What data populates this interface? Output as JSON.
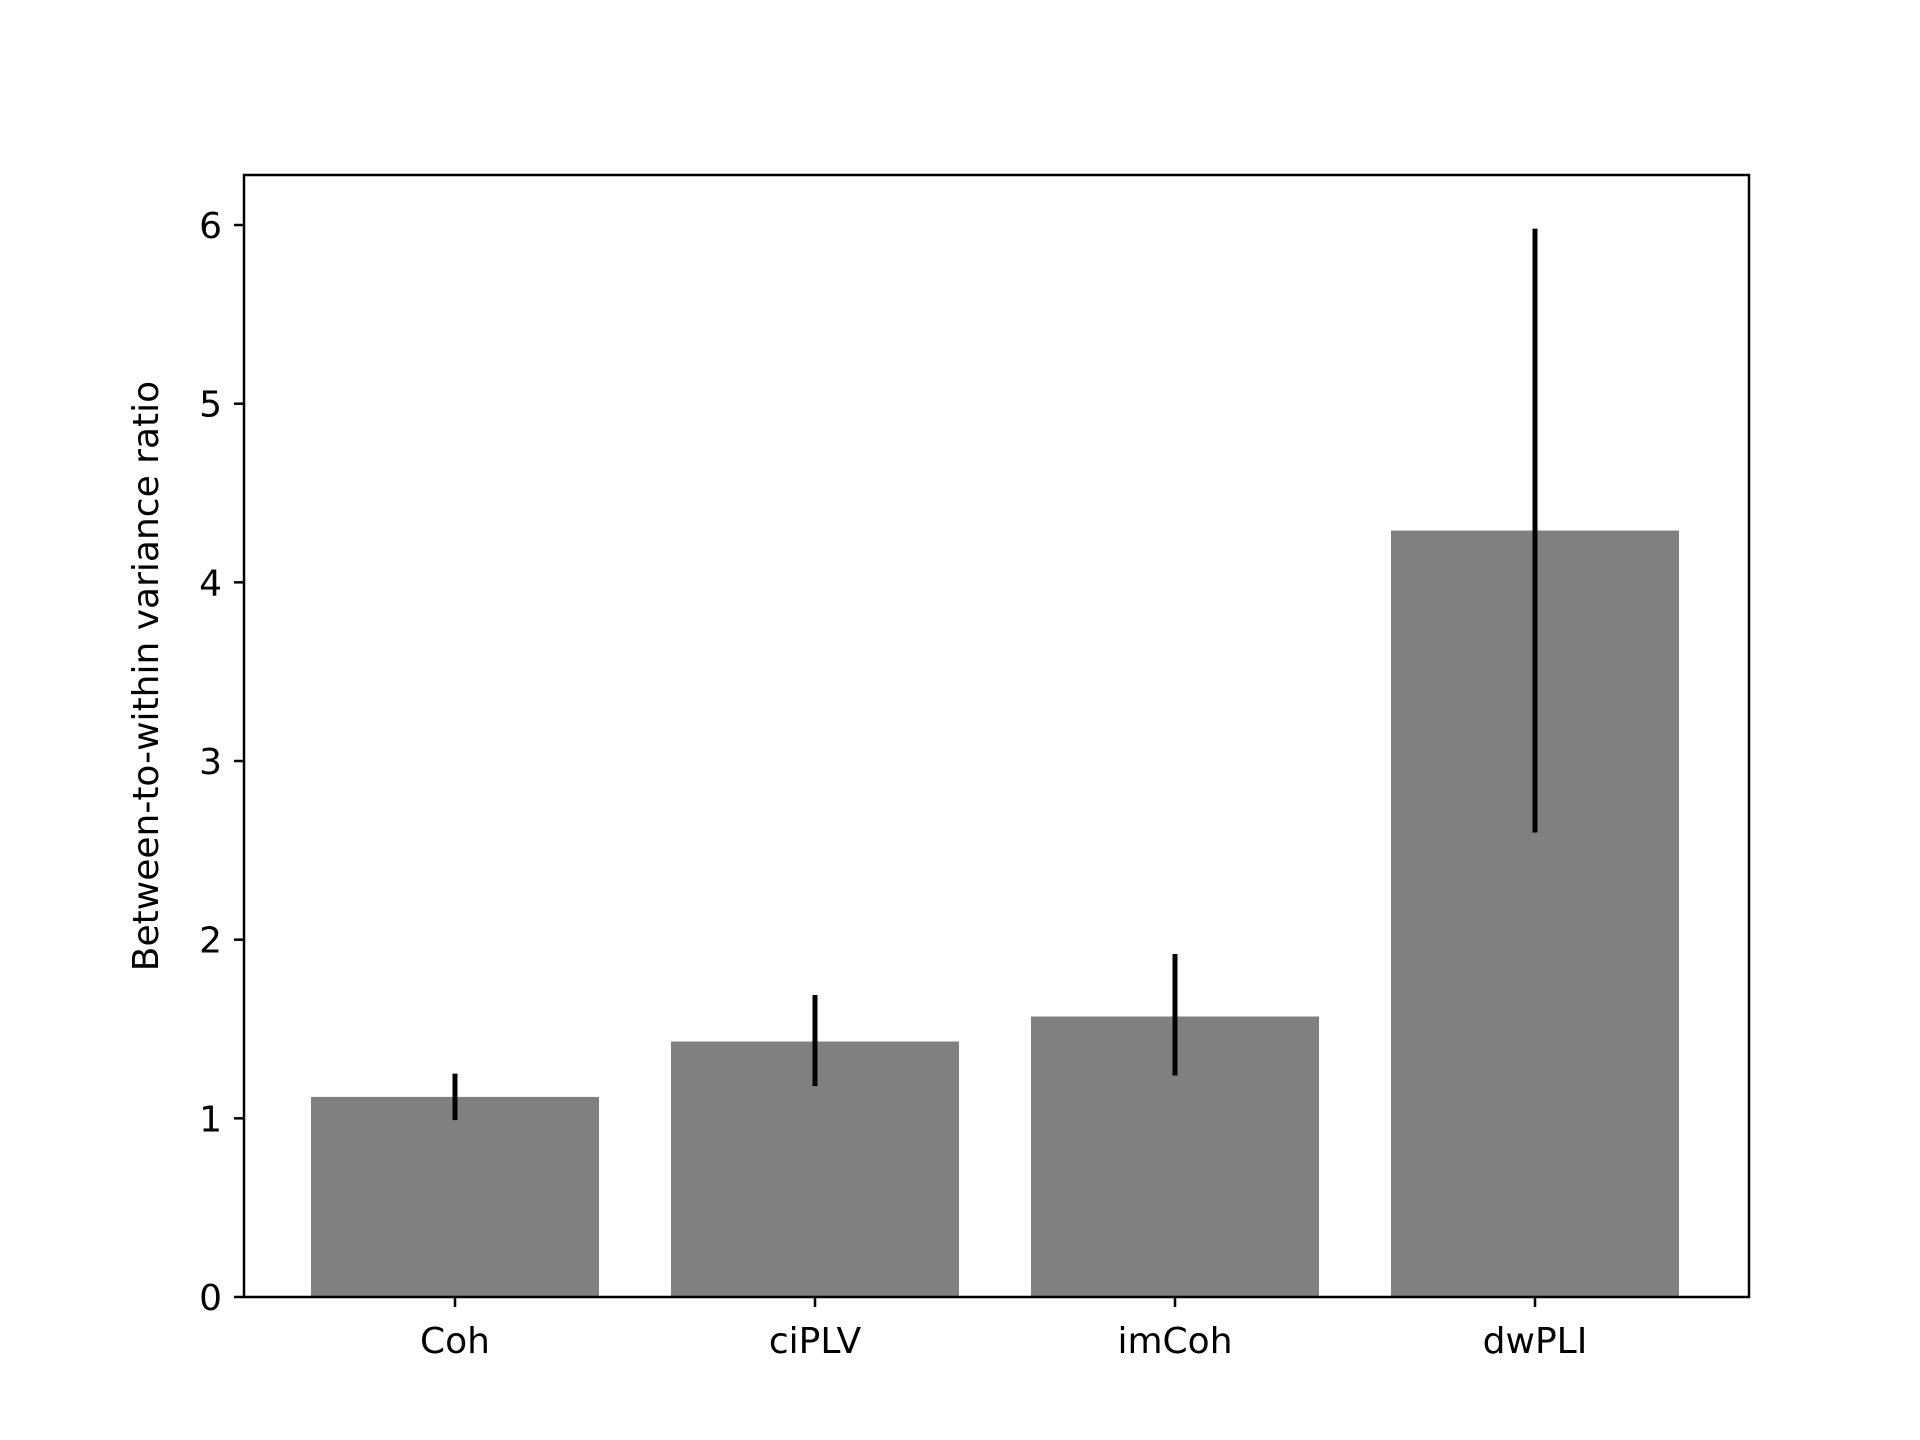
{
  "chart_data": {
    "type": "bar",
    "title": "",
    "xlabel": "",
    "ylabel": "Between-to-within variance ratio",
    "categories": [
      "Coh",
      "ciPLV",
      "imCoh",
      "dwPLI"
    ],
    "values": [
      1.12,
      1.43,
      1.57,
      4.29
    ],
    "error_low": [
      0.99,
      1.18,
      1.24,
      2.6
    ],
    "error_high": [
      1.25,
      1.69,
      1.92,
      5.98
    ],
    "ylim": [
      0,
      6.28
    ],
    "yticks": [
      "0",
      "1",
      "2",
      "3",
      "4",
      "5",
      "6"
    ],
    "grid": false,
    "legend": "none",
    "bar_color": "#808080",
    "error_color": "#000000"
  }
}
